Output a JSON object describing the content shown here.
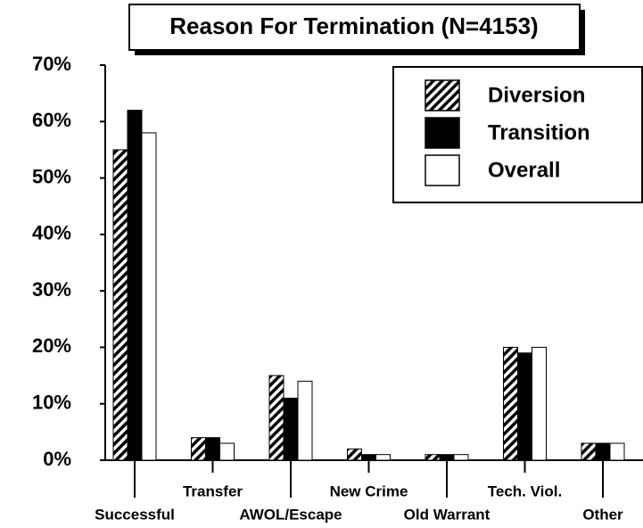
{
  "chart_data": {
    "type": "bar",
    "title": "Reason For Termination (N=4153)",
    "categories": [
      "Successful",
      "Transfer",
      "AWOL/Escape",
      "New Crime",
      "Old Warrant",
      "Tech. Viol.",
      "Other"
    ],
    "series": [
      {
        "name": "Diversion",
        "color": "#000000",
        "pattern": "hatch",
        "values": [
          55,
          4,
          15,
          2,
          1,
          20,
          3
        ]
      },
      {
        "name": "Transition",
        "color": "#000000",
        "values": [
          62,
          4,
          11,
          1,
          1,
          19,
          3
        ]
      },
      {
        "name": "Overall",
        "color": "#ffffff",
        "values": [
          58,
          3,
          14,
          1,
          1,
          20,
          3
        ]
      }
    ],
    "ylim": [
      0,
      70
    ],
    "yticks": [
      {
        "value": 0,
        "label": "0%"
      },
      {
        "value": 10,
        "label": "10%"
      },
      {
        "value": 20,
        "label": "20%"
      },
      {
        "value": 30,
        "label": "30%"
      },
      {
        "value": 40,
        "label": "40%"
      },
      {
        "value": 50,
        "label": "50%"
      },
      {
        "value": 60,
        "label": "60%"
      },
      {
        "value": 70,
        "label": "70%"
      }
    ],
    "grid": false,
    "legend": "upper right"
  }
}
